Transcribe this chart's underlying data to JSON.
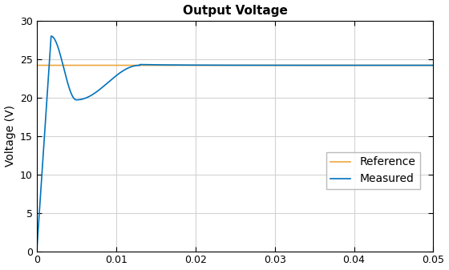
{
  "title": "Output Voltage",
  "ylabel": "Voltage (V)",
  "xlim": [
    0,
    0.05
  ],
  "ylim": [
    0,
    30
  ],
  "yticks": [
    0,
    5,
    10,
    15,
    20,
    25,
    30
  ],
  "xticks": [
    0,
    0.01,
    0.02,
    0.03,
    0.04,
    0.05
  ],
  "reference_value": 24.2,
  "measured_color": "#0072BD",
  "reference_color": "#EDA840",
  "background_color": "#FFFFFF",
  "grid_color": "#D3D3D3",
  "legend_labels": [
    "Measured",
    "Reference"
  ],
  "title_fontsize": 11,
  "axis_fontsize": 10,
  "tick_fontsize": 9,
  "line_width": 1.2,
  "spike_peak": 28.0,
  "spike_time": 0.0018,
  "dip_value": 19.7,
  "dip_time": 0.005,
  "settle_time": 0.013
}
